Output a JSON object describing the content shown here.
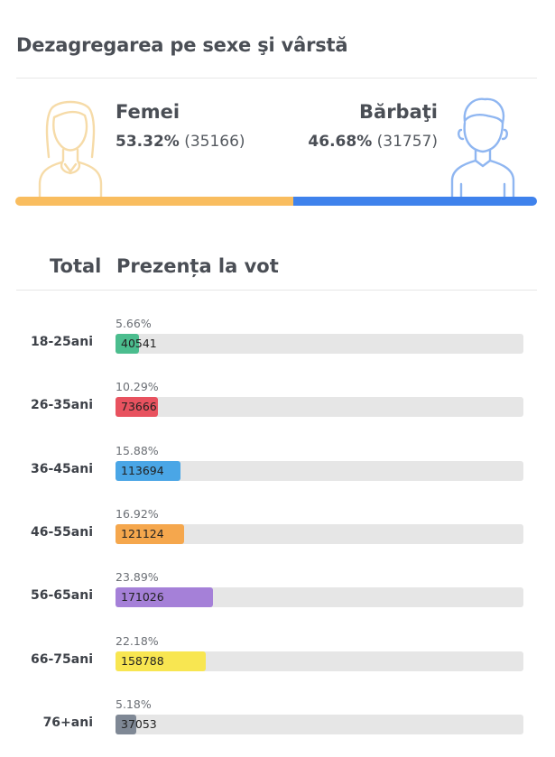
{
  "title": "Dezagregarea pe sexe şi vârstă",
  "gender": {
    "female": {
      "label": "Femei",
      "percent": "53.32%",
      "count": "(35166)",
      "share": 53.32,
      "color": "#f9bd5f",
      "icon_color": "#f6dba8"
    },
    "male": {
      "label": "Bărbaţi",
      "percent": "46.68%",
      "count": "(31757)",
      "share": 46.68,
      "color": "#3f82ec",
      "icon_color": "#8fb6f1"
    }
  },
  "table": {
    "col_total": "Total",
    "col_turnout": "Prezența la vot"
  },
  "chart_data": {
    "type": "bar",
    "orientation": "horizontal",
    "categories": [
      "18-25ani",
      "26-35ani",
      "36-45ani",
      "46-55ani",
      "56-65ani",
      "66-75ani",
      "76+ani"
    ],
    "values": [
      40541,
      73666,
      113694,
      121124,
      171026,
      158788,
      37053
    ],
    "percent_labels": [
      "5.66%",
      "10.29%",
      "15.88%",
      "16.92%",
      "23.89%",
      "22.18%",
      "5.18%"
    ],
    "percents": [
      5.66,
      10.29,
      15.88,
      16.92,
      23.89,
      22.18,
      5.18
    ],
    "colors": [
      "#4bbd8e",
      "#e8525f",
      "#4aa6e6",
      "#f5a74d",
      "#a580d8",
      "#f8e651",
      "#7f8895"
    ],
    "xlim": [
      0,
      100
    ]
  }
}
